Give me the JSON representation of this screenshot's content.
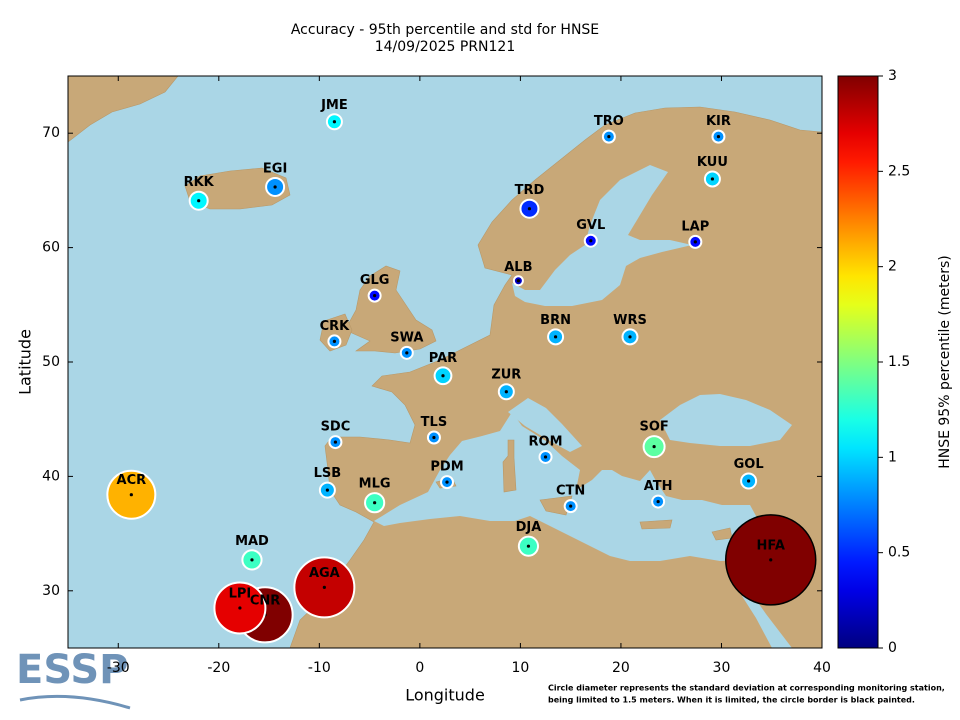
{
  "chart_data": {
    "type": "bubble-map",
    "title": "Accuracy - 95th percentile and std for HNSE",
    "subtitle": "14/09/2025 PRN121",
    "x_label": "Longitude",
    "y_label": "Latitude",
    "xlim": [
      -35,
      40
    ],
    "xticks": [
      -30,
      -20,
      -10,
      0,
      10,
      20,
      30,
      40
    ],
    "ylim": [
      25,
      75
    ],
    "yticks": [
      30,
      40,
      50,
      60,
      70
    ],
    "colormap": "jet",
    "colorbar": {
      "label": "HNSE 95% percentile (meters)",
      "lim": [
        0,
        3
      ],
      "ticks": [
        0,
        0.5,
        1,
        1.5,
        2,
        2.5,
        3
      ]
    },
    "footnote": [
      "Circle diameter represents the standard deviation at corresponding monitoring station,",
      "being limited to 1.5 meters. When it is limited, the circle border is black painted."
    ],
    "logo": "ESSP",
    "stations": [
      {
        "name": "JME",
        "lon": -8.5,
        "lat": 71.0,
        "value": 1.1,
        "size": 0.25
      },
      {
        "name": "TRO",
        "lon": 18.8,
        "lat": 69.7,
        "value": 0.8,
        "size": 0.2
      },
      {
        "name": "KIR",
        "lon": 29.7,
        "lat": 69.7,
        "value": 0.8,
        "size": 0.2
      },
      {
        "name": "RKK",
        "lon": -22.0,
        "lat": 64.1,
        "value": 1.1,
        "size": 0.3
      },
      {
        "name": "EGI",
        "lon": -14.4,
        "lat": 65.3,
        "value": 0.8,
        "size": 0.3
      },
      {
        "name": "KUU",
        "lon": 29.1,
        "lat": 66.0,
        "value": 1.0,
        "size": 0.25
      },
      {
        "name": "TRD",
        "lon": 10.9,
        "lat": 63.4,
        "value": 0.5,
        "size": 0.3
      },
      {
        "name": "GVL",
        "lon": 17.0,
        "lat": 60.6,
        "value": 0.4,
        "size": 0.2
      },
      {
        "name": "LAP",
        "lon": 27.4,
        "lat": 60.5,
        "value": 0.4,
        "size": 0.2
      },
      {
        "name": "ALB",
        "lon": 9.8,
        "lat": 57.1,
        "value": 0.2,
        "size": 0.15
      },
      {
        "name": "GLG",
        "lon": -4.5,
        "lat": 55.8,
        "value": 0.4,
        "size": 0.2
      },
      {
        "name": "CRK",
        "lon": -8.5,
        "lat": 51.8,
        "value": 0.8,
        "size": 0.2
      },
      {
        "name": "SWA",
        "lon": -1.3,
        "lat": 50.8,
        "value": 0.8,
        "size": 0.2
      },
      {
        "name": "BRN",
        "lon": 13.5,
        "lat": 52.2,
        "value": 0.9,
        "size": 0.25
      },
      {
        "name": "WRS",
        "lon": 20.9,
        "lat": 52.2,
        "value": 0.9,
        "size": 0.25
      },
      {
        "name": "PAR",
        "lon": 2.3,
        "lat": 48.8,
        "value": 1.0,
        "size": 0.28
      },
      {
        "name": "ZUR",
        "lon": 8.6,
        "lat": 47.4,
        "value": 0.9,
        "size": 0.25
      },
      {
        "name": "TLS",
        "lon": 1.4,
        "lat": 43.4,
        "value": 0.8,
        "size": 0.2
      },
      {
        "name": "SDC",
        "lon": -8.4,
        "lat": 43.0,
        "value": 0.8,
        "size": 0.2
      },
      {
        "name": "ROM",
        "lon": 12.5,
        "lat": 41.7,
        "value": 0.8,
        "size": 0.2
      },
      {
        "name": "SOF",
        "lon": 23.3,
        "lat": 42.6,
        "value": 1.4,
        "size": 0.35
      },
      {
        "name": "ACR",
        "lon": -28.7,
        "lat": 38.4,
        "value": 2.1,
        "size": 0.8
      },
      {
        "name": "LSB",
        "lon": -9.2,
        "lat": 38.8,
        "value": 0.9,
        "size": 0.25
      },
      {
        "name": "PDM",
        "lon": 2.7,
        "lat": 39.5,
        "value": 0.8,
        "size": 0.2
      },
      {
        "name": "GOL",
        "lon": 32.7,
        "lat": 39.6,
        "value": 0.9,
        "size": 0.25
      },
      {
        "name": "MLG",
        "lon": -4.5,
        "lat": 37.7,
        "value": 1.3,
        "size": 0.32
      },
      {
        "name": "CTN",
        "lon": 15.0,
        "lat": 37.4,
        "value": 0.8,
        "size": 0.2
      },
      {
        "name": "ATH",
        "lon": 23.7,
        "lat": 37.8,
        "value": 0.8,
        "size": 0.2
      },
      {
        "name": "DJA",
        "lon": 10.8,
        "lat": 33.9,
        "value": 1.3,
        "size": 0.32
      },
      {
        "name": "MAD",
        "lon": -16.7,
        "lat": 32.7,
        "value": 1.3,
        "size": 0.32
      },
      {
        "name": "AGA",
        "lon": -9.5,
        "lat": 30.3,
        "value": 2.8,
        "size": 1.0
      },
      {
        "name": "LPI",
        "lon": -17.9,
        "lat": 28.5,
        "value": 2.7,
        "size": 0.85
      },
      {
        "name": "CNR",
        "lon": -15.4,
        "lat": 27.9,
        "value": 3.0,
        "size": 0.92
      },
      {
        "name": "HFA",
        "lon": 34.9,
        "lat": 32.7,
        "value": 3.0,
        "size": 1.5,
        "limited": true
      }
    ]
  }
}
